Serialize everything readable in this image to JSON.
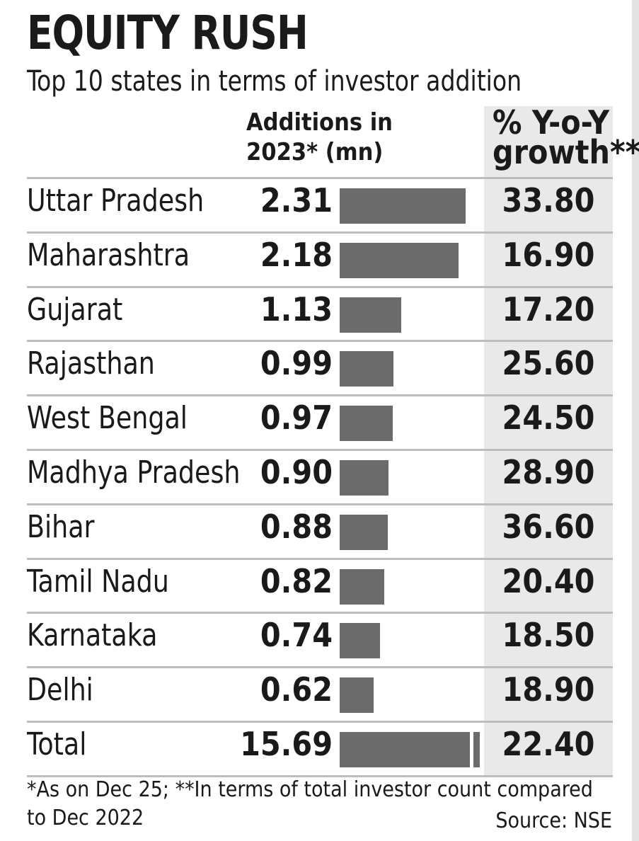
{
  "chart_data": {
    "type": "table",
    "title": "EQUITY RUSH",
    "subtitle": "Top 10 states in terms of investor addition",
    "columns": {
      "additions": [
        "Additions in",
        "2023* (mn)"
      ],
      "growth": [
        "% Y-o-Y",
        "growth**"
      ]
    },
    "rows": [
      {
        "state": "Uttar Pradesh",
        "additions": "2.31",
        "growth": "33.80"
      },
      {
        "state": "Maharashtra",
        "additions": "2.18",
        "growth": "16.90"
      },
      {
        "state": "Gujarat",
        "additions": "1.13",
        "growth": "17.20"
      },
      {
        "state": "Rajasthan",
        "additions": "0.99",
        "growth": "25.60"
      },
      {
        "state": "West Bengal",
        "additions": "0.97",
        "growth": "24.50"
      },
      {
        "state": "Madhya Pradesh",
        "additions": "0.90",
        "growth": "28.90"
      },
      {
        "state": "Bihar",
        "additions": "0.88",
        "growth": "36.60"
      },
      {
        "state": "Tamil Nadu",
        "additions": "0.82",
        "growth": "20.40"
      },
      {
        "state": "Karnataka",
        "additions": "0.74",
        "growth": "18.50"
      },
      {
        "state": "Delhi",
        "additions": "0.62",
        "growth": "18.90"
      },
      {
        "state": "Total",
        "additions": "15.69",
        "growth": "22.40",
        "bar_truncated": true
      }
    ],
    "footnote": "*As on Dec 25; **In terms of total investor count compared to Dec 2022",
    "source": "Source: NSE",
    "bar_color": "#6b6b6b",
    "growth_column_bg": "#e9e9e9"
  }
}
